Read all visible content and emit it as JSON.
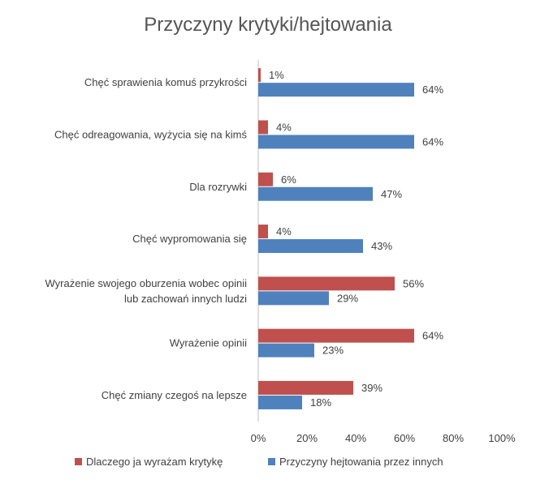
{
  "chart_data": {
    "type": "bar",
    "orientation": "horizontal",
    "title": "Przyczyny krytyki/hejtowania",
    "categories": [
      [
        "Chęć sprawienia komuś przykrości"
      ],
      [
        "Chęć odreagowania, wyżycia się na kimś"
      ],
      [
        "Dla rozrywki"
      ],
      [
        "Chęć wypromowania się"
      ],
      [
        "Wyrażenie swojego oburzenia wobec opinii",
        "lub zachowań innych ludzi"
      ],
      [
        "Wyrażenie opinii"
      ],
      [
        "Chęć zmiany czegoś na lepsze"
      ]
    ],
    "series": [
      {
        "name": "Dlaczego ja wyrażam krytykę",
        "color": "#c0504d",
        "values": [
          1,
          4,
          6,
          4,
          56,
          64,
          39
        ]
      },
      {
        "name": "Przyczyny hejtowania przez innych",
        "color": "#4f81bd",
        "values": [
          64,
          64,
          47,
          43,
          29,
          23,
          18
        ]
      }
    ],
    "value_suffix": "%",
    "xlim": [
      0,
      100
    ],
    "xticks": [
      0,
      20,
      40,
      60,
      80,
      100
    ],
    "xtick_labels": [
      "0%",
      "20%",
      "40%",
      "60%",
      "80%",
      "100%"
    ],
    "grid": false,
    "legend_position": "bottom"
  }
}
